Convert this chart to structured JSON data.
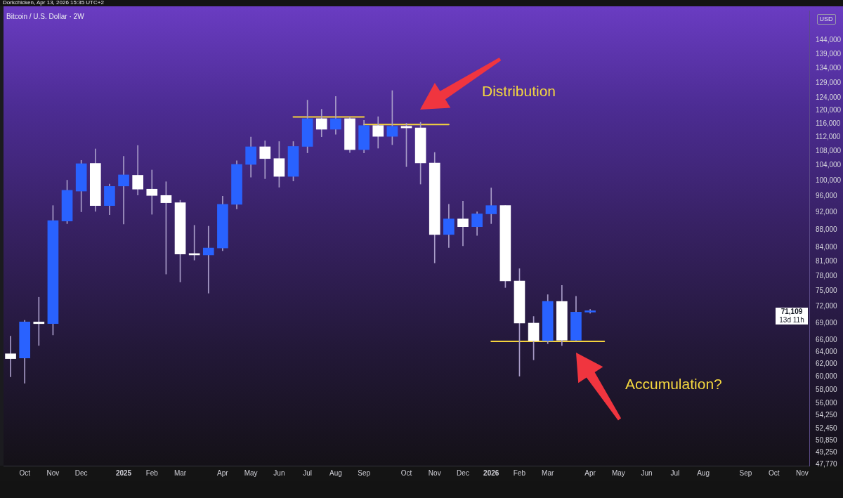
{
  "chart_data": {
    "type": "candlestick",
    "title": "Bitcoin / U.S. Dollar · 2W",
    "ylabel": "USD",
    "log": "y",
    "categories": [
      null,
      "Oct",
      null,
      "Nov",
      null,
      "Dec",
      null,
      null,
      "2025",
      null,
      "Feb",
      null,
      "Mar",
      null,
      null,
      "Apr",
      null,
      "May",
      null,
      "Jun",
      null,
      "Jul",
      null,
      "Aug",
      null,
      "Sep",
      null,
      null,
      "Oct",
      null,
      "Nov",
      null,
      "Dec",
      null,
      "2026",
      null,
      "Feb",
      null,
      "Mar",
      null,
      null,
      "Apr",
      null,
      "May",
      null,
      "Jun",
      null,
      "Jul",
      null,
      "Aug",
      null,
      null,
      "Sep",
      null,
      "Oct",
      null,
      "Nov"
    ],
    "ohlc": [
      [
        63700,
        66700,
        60000,
        62900
      ],
      [
        63000,
        69500,
        59000,
        69200
      ],
      [
        69200,
        73800,
        65100,
        68900
      ],
      [
        68900,
        93700,
        66900,
        90100
      ],
      [
        90000,
        100100,
        89400,
        97500
      ],
      [
        97300,
        105400,
        92200,
        104500
      ],
      [
        104600,
        108600,
        92300,
        93700
      ],
      [
        93700,
        99100,
        91500,
        98500
      ],
      [
        98600,
        106500,
        89300,
        101500
      ],
      [
        101400,
        109600,
        96300,
        97800
      ],
      [
        97800,
        102800,
        91600,
        96200
      ],
      [
        96200,
        99700,
        78400,
        94400
      ],
      [
        94400,
        95000,
        76800,
        82600
      ],
      [
        82600,
        89000,
        81300,
        82400
      ],
      [
        82400,
        88800,
        74600,
        83900
      ],
      [
        83900,
        96000,
        83300,
        94000
      ],
      [
        94000,
        105300,
        92900,
        104300
      ],
      [
        104300,
        112000,
        100900,
        109200
      ],
      [
        109200,
        110900,
        100500,
        105900
      ],
      [
        105900,
        110700,
        98300,
        101100
      ],
      [
        101100,
        110700,
        99900,
        109300
      ],
      [
        109300,
        123300,
        107500,
        117500
      ],
      [
        117500,
        120400,
        112100,
        114300
      ],
      [
        114300,
        124500,
        112800,
        117500
      ],
      [
        117500,
        117900,
        107600,
        108400
      ],
      [
        108400,
        117000,
        107500,
        115400
      ],
      [
        115400,
        118100,
        108800,
        112200
      ],
      [
        112200,
        126400,
        109800,
        115200
      ],
      [
        115200,
        116100,
        103700,
        114700
      ],
      [
        114700,
        116400,
        99100,
        104700
      ],
      [
        104700,
        107600,
        80700,
        86900
      ],
      [
        86900,
        94000,
        84000,
        90500
      ],
      [
        90500,
        94800,
        84400,
        88700
      ],
      [
        88700,
        92200,
        86700,
        91700
      ],
      [
        91700,
        98100,
        89400,
        93700
      ],
      [
        93700,
        93700,
        75700,
        77000
      ],
      [
        77000,
        79500,
        60100,
        69000
      ],
      [
        69000,
        70200,
        62700,
        65900
      ],
      [
        65900,
        74300,
        65400,
        73000
      ],
      [
        73000,
        76100,
        65100,
        66000
      ],
      [
        66000,
        74000,
        65900,
        71000
      ],
      [
        71000,
        71500,
        70800,
        71109
      ],
      null,
      null,
      null,
      null,
      null,
      null,
      null,
      null,
      null,
      null,
      null,
      null,
      null,
      null,
      null
    ],
    "colors": [
      "#ffffff",
      "#2962ff",
      "#ffffff",
      "#2962ff",
      "#2962ff",
      "#2962ff",
      "#ffffff",
      "#2962ff",
      "#2962ff",
      "#ffffff",
      "#ffffff",
      "#ffffff",
      "#ffffff",
      "#ffffff",
      "#2962ff",
      "#2962ff",
      "#2962ff",
      "#2962ff",
      "#ffffff",
      "#ffffff",
      "#2962ff",
      "#2962ff",
      "#ffffff",
      "#2962ff",
      "#ffffff",
      "#2962ff",
      "#ffffff",
      "#2962ff",
      "#ffffff",
      "#ffffff",
      "#ffffff",
      "#2962ff",
      "#ffffff",
      "#2962ff",
      "#2962ff",
      "#ffffff",
      "#ffffff",
      "#ffffff",
      "#2962ff",
      "#ffffff",
      "#2962ff",
      "#2962ff",
      null,
      null,
      null,
      null,
      null,
      null,
      null,
      null,
      null,
      null,
      null,
      null,
      null,
      null,
      null
    ],
    "series": [
      {
        "type": "line",
        "color": "#f5d33d",
        "values": [
          null,
          null,
          null,
          null,
          null,
          null,
          null,
          null,
          null,
          null,
          null,
          null,
          null,
          null,
          null,
          null,
          null,
          null,
          null,
          null,
          118000,
          118000,
          118000,
          118000,
          118000,
          118000,
          null,
          null,
          null,
          null,
          null,
          null,
          null,
          null,
          null,
          null,
          null,
          null,
          null,
          null,
          null,
          null,
          null,
          null,
          null,
          null,
          null,
          null,
          null,
          null,
          null,
          null,
          null,
          null,
          null,
          null,
          null
        ]
      },
      {
        "type": "line",
        "color": "#f5d33d",
        "values": [
          null,
          null,
          null,
          null,
          null,
          null,
          null,
          null,
          null,
          null,
          null,
          null,
          null,
          null,
          null,
          null,
          null,
          null,
          null,
          null,
          null,
          null,
          null,
          null,
          null,
          115700,
          115700,
          115700,
          115700,
          115700,
          115700,
          115700,
          null,
          null,
          null,
          null,
          null,
          null,
          null,
          null,
          null,
          null,
          null,
          null,
          null,
          null,
          null,
          null,
          null,
          null,
          null,
          null,
          null,
          null,
          null,
          null,
          null
        ]
      },
      {
        "type": "line",
        "color": "#f5d33d",
        "values": [
          null,
          null,
          null,
          null,
          null,
          null,
          null,
          null,
          null,
          null,
          null,
          null,
          null,
          null,
          null,
          null,
          null,
          null,
          null,
          null,
          null,
          null,
          null,
          null,
          null,
          null,
          null,
          null,
          null,
          null,
          null,
          null,
          null,
          null,
          65800,
          65800,
          65800,
          65800,
          65800,
          65800,
          65800,
          65800,
          65800,
          null,
          null,
          null,
          null,
          null,
          null,
          null,
          null,
          null,
          null,
          null,
          null,
          null,
          null
        ]
      }
    ],
    "ylim": [
      47600,
      155700
    ],
    "yticks": [
      {
        "value": 47770,
        "label": "47,770"
      },
      {
        "value": 49250,
        "label": "49,250"
      },
      {
        "value": 50850,
        "label": "50,850"
      },
      {
        "value": 52450,
        "label": "52,450"
      },
      {
        "value": 54250,
        "label": "54,250"
      },
      {
        "value": 56000,
        "label": "56,000"
      },
      {
        "value": 58000,
        "label": "58,000"
      },
      {
        "value": 60000,
        "label": "60,000"
      },
      {
        "value": 62000,
        "label": "62,000"
      },
      {
        "value": 64000,
        "label": "64,000"
      },
      {
        "value": 66000,
        "label": "66,000"
      },
      {
        "value": 69000,
        "label": "69,000"
      },
      {
        "value": 72000,
        "label": "72,000"
      },
      {
        "value": 75000,
        "label": "75,000"
      },
      {
        "value": 78000,
        "label": "78,000"
      },
      {
        "value": 81000,
        "label": "81,000"
      },
      {
        "value": 84000,
        "label": "84,000"
      },
      {
        "value": 88000,
        "label": "88,000"
      },
      {
        "value": 92000,
        "label": "92,000"
      },
      {
        "value": 96000,
        "label": "96,000"
      },
      {
        "value": 100000,
        "label": "100,000"
      },
      {
        "value": 104000,
        "label": "104,000"
      },
      {
        "value": 108000,
        "label": "108,000"
      },
      {
        "value": 112000,
        "label": "112,000"
      },
      {
        "value": 116000,
        "label": "116,000"
      },
      {
        "value": 120000,
        "label": "120,000"
      },
      {
        "value": 124000,
        "label": "124,000"
      },
      {
        "value": 129000,
        "label": "129,000"
      },
      {
        "value": 134000,
        "label": "134,000"
      },
      {
        "value": 139000,
        "label": "139,000"
      },
      {
        "value": 144000,
        "label": "144,000"
      }
    ],
    "annotations": [
      "Dorkchicken, Apr 13, 2026 15:35 UTC+2",
      "Distribution",
      "Accumulation?",
      "71,109",
      "13d 11h"
    ]
  }
}
